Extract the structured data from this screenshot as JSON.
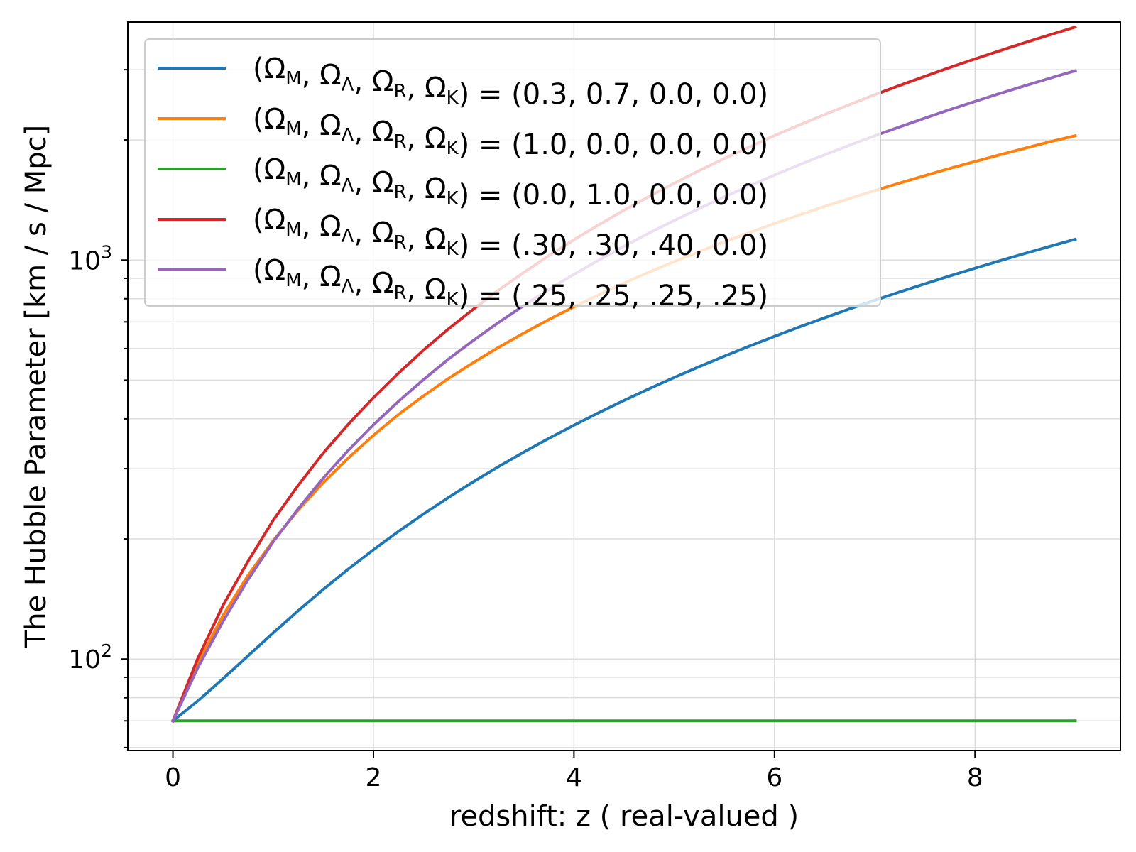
{
  "chart_data": {
    "type": "line",
    "xlabel": "redshift: z ( real-valued )",
    "ylabel": "The Hubble Parameter [km / s / Mpc]",
    "yscale": "log",
    "xlim": [
      -0.45,
      9.45
    ],
    "ylim": [
      59,
      3950
    ],
    "x_ticks": [
      0,
      2,
      4,
      6,
      8
    ],
    "x_tick_labels": [
      "0",
      "2",
      "4",
      "6",
      "8"
    ],
    "y_major_ticks": [
      100,
      1000
    ],
    "y_tick_labels": [
      {
        "base": "10",
        "exp": "2"
      },
      {
        "base": "10",
        "exp": "3"
      }
    ],
    "grid": true,
    "legend_position": "upper-left",
    "x": [
      0,
      0.25,
      0.5,
      0.75,
      1,
      1.25,
      1.5,
      1.75,
      2,
      2.25,
      2.5,
      2.75,
      3,
      3.25,
      3.5,
      3.75,
      4,
      4.25,
      4.5,
      4.75,
      5,
      5.25,
      5.5,
      5.75,
      6,
      6.25,
      6.5,
      6.75,
      7,
      7.25,
      7.5,
      7.75,
      8,
      8.25,
      8.5,
      8.75,
      9
    ],
    "series": [
      {
        "name": "(0.3, 0.7, 0.0, 0.0)",
        "color": "#1f77b4",
        "values": [
          70,
          78.6,
          89.3,
          101.9,
          116.3,
          132.2,
          149.5,
          168.1,
          187.9,
          208.9,
          231,
          254.2,
          278.5,
          303.8,
          330.1,
          357.4,
          385.6,
          414.8,
          444.9,
          475.9,
          507.8,
          540.6,
          574.2,
          608.6,
          643.8,
          679.9,
          716.7,
          754.4,
          792.8,
          832,
          871.9,
          912.6,
          954.1,
          996.3,
          1039.3,
          1082.9,
          1127.4
        ]
      },
      {
        "name": "(1.0, 0.0, 0.0, 0.0)",
        "color": "#ff7f0e",
        "values": [
          70,
          97.8,
          128.6,
          162.2,
          198,
          236.3,
          276.7,
          319.1,
          363.7,
          410.2,
          456.8,
          505.2,
          554,
          604.5,
          656.2,
          709.6,
          763.7,
          819.2,
          875.3,
          932.9,
          990.9,
          1050.4,
          1111.1,
          1171.8,
          1234.8,
          1297.4,
          1362.2,
          1426.9,
          1493.5,
          1559.8,
          1628.1,
          1697.4,
          1765.3,
          1836.5,
          1907.3,
          1979.5,
          2049.5
        ]
      },
      {
        "name": "(0.0, 1.0, 0.0, 0.0)",
        "color": "#2ca02c",
        "values": [
          70,
          70,
          70,
          70,
          70,
          70,
          70,
          70,
          70,
          70,
          70,
          70,
          70,
          70,
          70,
          70,
          70,
          70,
          70,
          70,
          70,
          70,
          70,
          70,
          70,
          70,
          70,
          70,
          70,
          70,
          70,
          70,
          70,
          70,
          70,
          70,
          70
        ]
      },
      {
        "name": "(.30, .30, .40, 0.0)",
        "color": "#d62728",
        "values": [
          70,
          100.6,
          136.3,
          175.9,
          222.7,
          272.5,
          328.4,
          387.8,
          451.8,
          520.8,
          594.8,
          672.7,
          754.3,
          841.5,
          931.1,
          1025.5,
          1124.4,
          1226.1,
          1333.5,
          1443.5,
          1557.5,
          1676.2,
          1796.3,
          1921.3,
          2050,
          2181.6,
          2315.2,
          2453.6,
          2596.4,
          2739.8,
          2887.5,
          3039.2,
          3192.2,
          3348.4,
          3508.1,
          3670.7,
          3837.1
        ]
      },
      {
        "name": "(.25, .25, .25, .25)",
        "color": "#9467bd",
        "values": [
          70,
          95.3,
          124.3,
          158.2,
          196.7,
          238.1,
          284.2,
          333.7,
          386.5,
          442.4,
          501.8,
          564.9,
          629.8,
          698,
          769.2,
          843.9,
          921,
          1000.6,
          1083.2,
          1168.9,
          1256.5,
          1346.4,
          1440.1,
          1535.2,
          1632.9,
          1733.9,
          1835.8,
          1940.8,
          2048.6,
          2157.2,
          2268.6,
          2382.4,
          2497.9,
          2615.9,
          2735.1,
          2857.5,
          2981.5
        ]
      }
    ]
  }
}
